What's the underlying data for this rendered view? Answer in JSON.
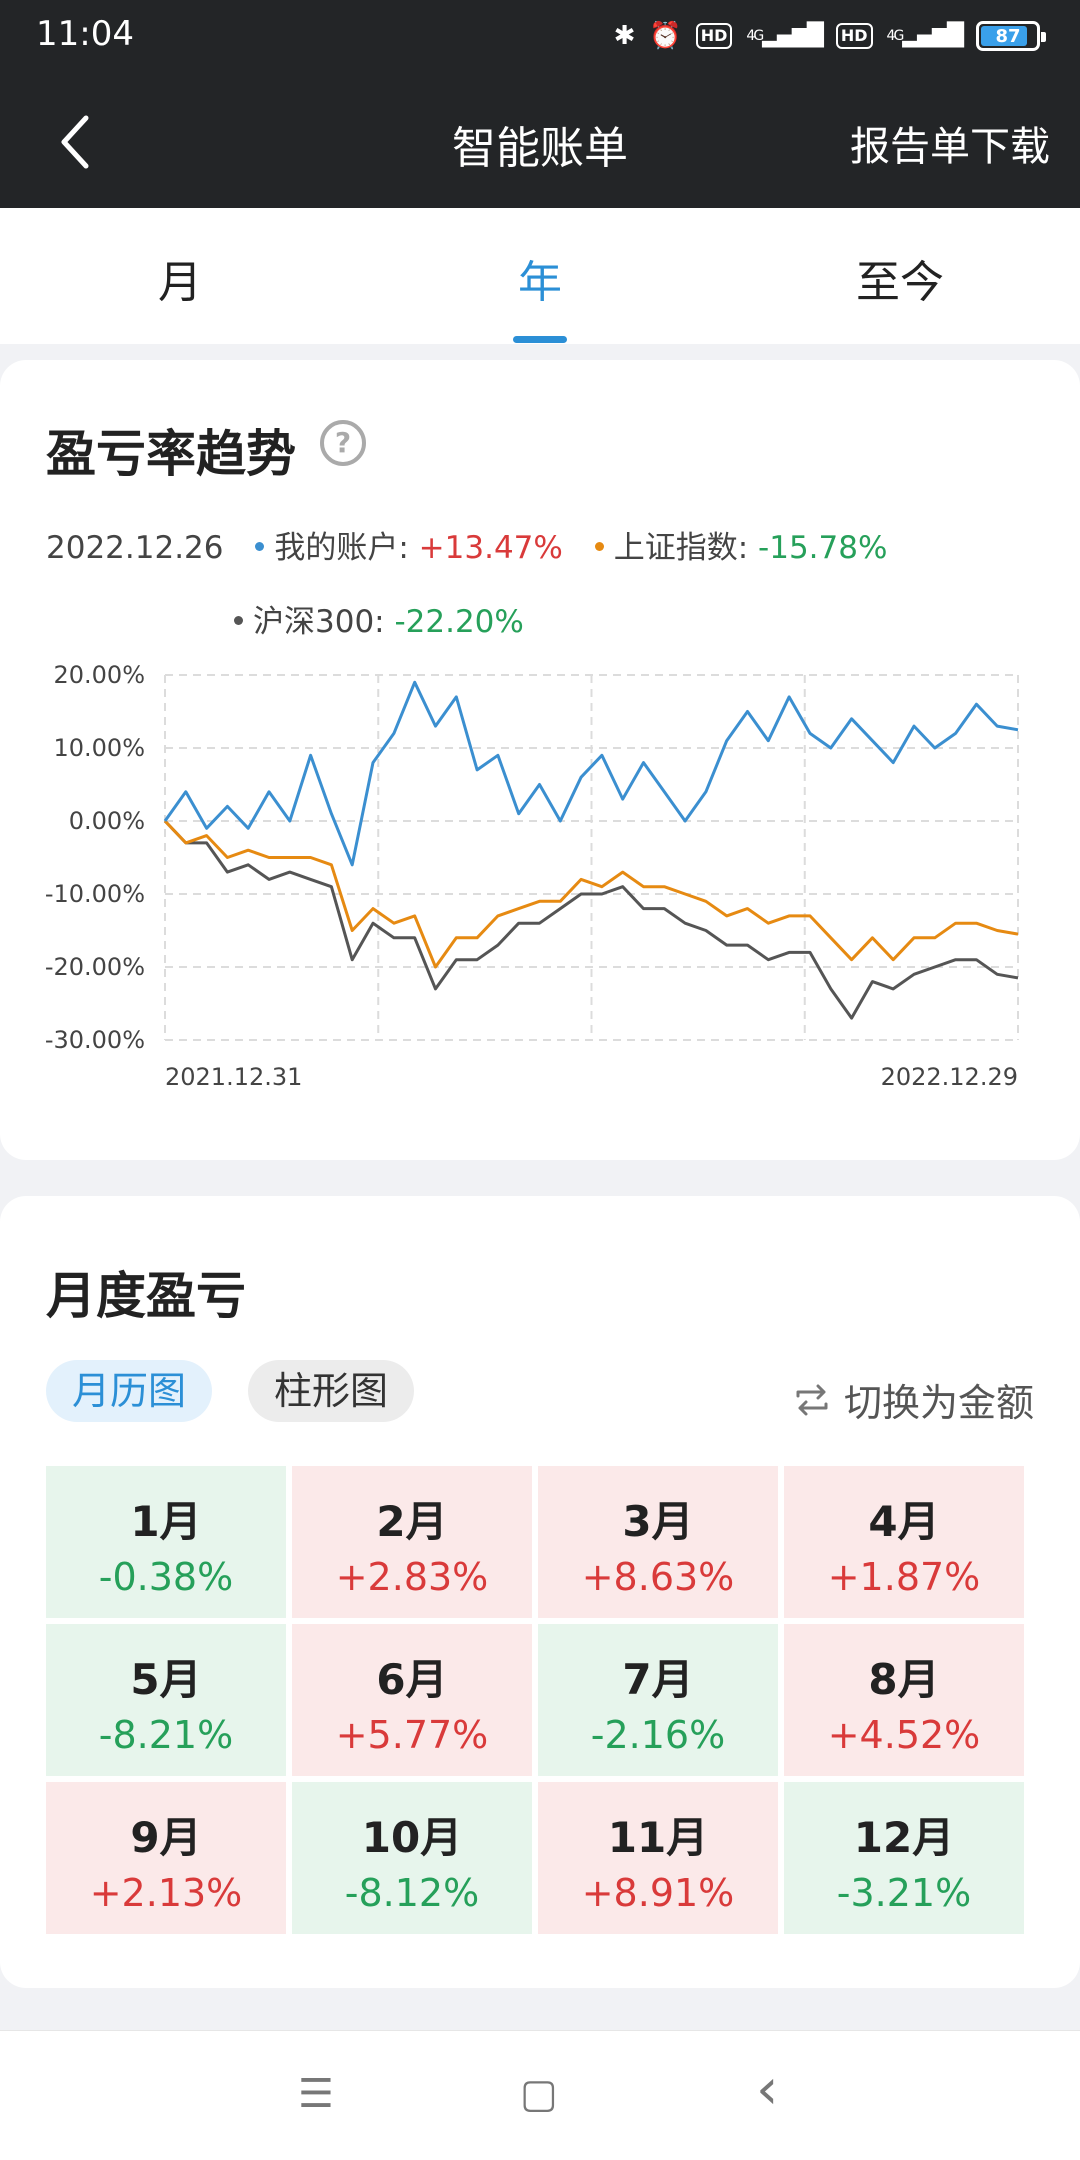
{
  "status_bar": {
    "time": "11:04",
    "battery": "87",
    "hd1": "HD",
    "hd2": "HD",
    "net1": "4G",
    "net2": "4G"
  },
  "header": {
    "title": "智能账单",
    "right_action": "报告单下载",
    "back_icon": "chevron-left-icon"
  },
  "tabs": [
    {
      "label": "月"
    },
    {
      "label": "年",
      "active": true
    },
    {
      "label": "至今"
    }
  ],
  "trend": {
    "title": "盈亏率趋势",
    "date": "2022.12.26",
    "legend": [
      {
        "label": "我的账户: ",
        "value": "+13.47%",
        "color": "#3b8fd0"
      },
      {
        "label": "上证指数: ",
        "value": "-15.78%",
        "color": "#e68a12"
      },
      {
        "label": "沪深300: ",
        "value": "-22.20%",
        "color": "#555555"
      }
    ]
  },
  "chart_data": {
    "type": "line",
    "x_start": "2021.12.31",
    "x_end": "2022.12.29",
    "y_ticks": [
      "20.00%",
      "10.00%",
      "0.00%",
      "-10.00%",
      "-20.00%",
      "-30.00%"
    ],
    "ylim": [
      -30,
      20
    ],
    "series": [
      {
        "name": "我的账户",
        "color": "#3b8fd0",
        "values": [
          0,
          4,
          -1,
          2,
          -1,
          4,
          0,
          9,
          1,
          -6,
          8,
          12,
          19,
          13,
          17,
          7,
          9,
          1,
          5,
          0,
          6,
          9,
          3,
          8,
          4,
          0,
          4,
          11,
          15,
          11,
          17,
          12,
          10,
          14,
          11,
          8,
          13,
          10,
          12,
          16,
          13,
          12.5
        ]
      },
      {
        "name": "上证指数",
        "color": "#e68a12",
        "values": [
          0,
          -3,
          -2,
          -5,
          -4,
          -5,
          -5,
          -5,
          -6,
          -15,
          -12,
          -14,
          -13,
          -20,
          -16,
          -16,
          -13,
          -12,
          -11,
          -11,
          -8,
          -9,
          -7,
          -9,
          -9,
          -10,
          -11,
          -13,
          -12,
          -14,
          -13,
          -13,
          -16,
          -19,
          -16,
          -19,
          -16,
          -16,
          -14,
          -14,
          -15,
          -15.5
        ]
      },
      {
        "name": "沪深300",
        "color": "#555555",
        "values": [
          0,
          -3,
          -3,
          -7,
          -6,
          -8,
          -7,
          -8,
          -9,
          -19,
          -14,
          -16,
          -16,
          -23,
          -19,
          -19,
          -17,
          -14,
          -14,
          -12,
          -10,
          -10,
          -9,
          -12,
          -12,
          -14,
          -15,
          -17,
          -17,
          -19,
          -18,
          -18,
          -23,
          -27,
          -22,
          -23,
          -21,
          -20,
          -19,
          -19,
          -21,
          -21.5
        ]
      }
    ]
  },
  "monthly": {
    "title": "月度盈亏",
    "view_calendar": "月历图",
    "view_bar": "柱形图",
    "switch_label": "切换为金额",
    "months": [
      {
        "label": "1月",
        "value": "-0.38%",
        "dir": "down"
      },
      {
        "label": "2月",
        "value": "+2.83%",
        "dir": "up"
      },
      {
        "label": "3月",
        "value": "+8.63%",
        "dir": "up"
      },
      {
        "label": "4月",
        "value": "+1.87%",
        "dir": "up"
      },
      {
        "label": "5月",
        "value": "-8.21%",
        "dir": "down"
      },
      {
        "label": "6月",
        "value": "+5.77%",
        "dir": "up"
      },
      {
        "label": "7月",
        "value": "-2.16%",
        "dir": "down"
      },
      {
        "label": "8月",
        "value": "+4.52%",
        "dir": "up"
      },
      {
        "label": "9月",
        "value": "+2.13%",
        "dir": "up"
      },
      {
        "label": "10月",
        "value": "-8.12%",
        "dir": "down"
      },
      {
        "label": "11月",
        "value": "+8.91%",
        "dir": "up"
      },
      {
        "label": "12月",
        "value": "-3.21%",
        "dir": "down"
      }
    ]
  },
  "bottom_nav": {
    "menu_icon": "☰",
    "home_icon": "▢",
    "back_icon": "‹"
  }
}
